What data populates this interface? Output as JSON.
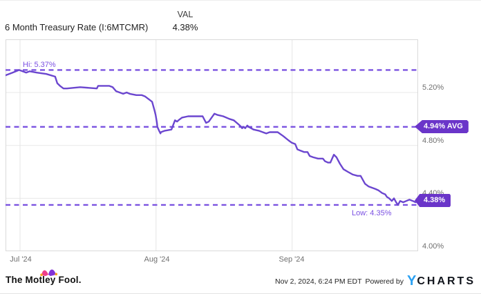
{
  "header": {
    "title": "6 Month Treasury Rate (I:6MTCMR)",
    "val_label": "VAL",
    "val_value": "4.38%"
  },
  "chart": {
    "hi_label": "Hi: 5.37%",
    "low_label": "Low: 4.35%",
    "avg_badge": "4.94% AVG",
    "last_badge": "4.38%",
    "y_tick_labels": [
      "5.20%",
      "4.80%",
      "4.40%",
      "4.00%"
    ],
    "x_tick_labels": [
      "Jul '24",
      "Aug '24",
      "Sep '24"
    ]
  },
  "colors": {
    "line": "#6b46cf",
    "dashed_lines": "#7a52e0",
    "badge": "#6a35c9",
    "axis_text": "#6f6f6f",
    "ycharts_blue": "#2aa0f2"
  },
  "chart_data": {
    "type": "line",
    "title": "6 Month Treasury Rate (I:6MTCMR)",
    "series_name": "6 Month Treasury Rate",
    "unit": "%",
    "stats": {
      "high": 5.37,
      "average": 4.94,
      "low": 4.35,
      "last": 4.38
    },
    "y_axis": {
      "ticks": [
        5.2,
        4.8,
        4.4,
        4.0
      ],
      "top_value": 5.6,
      "bottom_value": 4.0
    },
    "x_axis": {
      "months": [
        "Jul '24",
        "Aug '24",
        "Sep '24"
      ],
      "month_day_offsets": [
        3.3,
        34.3,
        65.3
      ],
      "days_total": 94
    },
    "legend": "none",
    "grid": true,
    "points": [
      [
        0,
        5.33
      ],
      [
        1.6,
        5.35
      ],
      [
        3.1,
        5.37
      ],
      [
        4.7,
        5.35
      ],
      [
        5.5,
        5.36
      ],
      [
        7.1,
        5.35
      ],
      [
        9.3,
        5.34
      ],
      [
        11.3,
        5.32
      ],
      [
        11.8,
        5.27
      ],
      [
        12.4,
        5.25
      ],
      [
        13.2,
        5.23
      ],
      [
        14,
        5.23
      ],
      [
        17,
        5.24
      ],
      [
        20.8,
        5.23
      ],
      [
        21.1,
        5.25
      ],
      [
        23.6,
        5.25
      ],
      [
        24.4,
        5.24
      ],
      [
        25.2,
        5.21
      ],
      [
        26,
        5.2
      ],
      [
        26.8,
        5.19
      ],
      [
        27.6,
        5.2
      ],
      [
        28.3,
        5.19
      ],
      [
        29.8,
        5.18
      ],
      [
        31,
        5.18
      ],
      [
        31.8,
        5.17
      ],
      [
        32.6,
        5.15
      ],
      [
        33.4,
        5.13
      ],
      [
        33.9,
        5.07
      ],
      [
        34.2,
        5.03
      ],
      [
        34.5,
        4.97
      ],
      [
        34.6,
        4.94
      ],
      [
        35,
        4.91
      ],
      [
        35.3,
        4.89
      ],
      [
        35.4,
        4.9
      ],
      [
        36.2,
        4.91
      ],
      [
        37.8,
        4.92
      ],
      [
        38.6,
        4.99
      ],
      [
        39.1,
        4.98
      ],
      [
        39.4,
        4.99
      ],
      [
        40.2,
        5.01
      ],
      [
        41.6,
        5.02
      ],
      [
        43.1,
        5.02
      ],
      [
        44.9,
        5.02
      ],
      [
        45.7,
        4.97
      ],
      [
        46.3,
        4.98
      ],
      [
        47.6,
        5.04
      ],
      [
        48.3,
        5.03
      ],
      [
        49.6,
        5.02
      ],
      [
        51,
        5.0
      ],
      [
        52,
        4.99
      ],
      [
        53.4,
        4.95
      ],
      [
        53.9,
        4.93
      ],
      [
        54.3,
        4.94
      ],
      [
        54.6,
        4.93
      ],
      [
        55.1,
        4.95
      ],
      [
        55.4,
        4.94
      ],
      [
        56.5,
        4.92
      ],
      [
        57.8,
        4.91
      ],
      [
        58.6,
        4.9
      ],
      [
        59.4,
        4.89
      ],
      [
        60.2,
        4.9
      ],
      [
        61.3,
        4.9
      ],
      [
        62,
        4.9
      ],
      [
        63.3,
        4.87
      ],
      [
        64.4,
        4.84
      ],
      [
        65.2,
        4.82
      ],
      [
        66,
        4.81
      ],
      [
        66.5,
        4.77
      ],
      [
        67.2,
        4.76
      ],
      [
        68,
        4.75
      ],
      [
        68.8,
        4.75
      ],
      [
        69.3,
        4.72
      ],
      [
        70.1,
        4.71
      ],
      [
        71.2,
        4.7
      ],
      [
        72.3,
        4.7
      ],
      [
        72.8,
        4.68
      ],
      [
        73.5,
        4.67
      ],
      [
        74,
        4.67
      ],
      [
        74.8,
        4.73
      ],
      [
        75.4,
        4.71
      ],
      [
        76.2,
        4.66
      ],
      [
        77,
        4.62
      ],
      [
        78,
        4.6
      ],
      [
        79.1,
        4.58
      ],
      [
        80.2,
        4.57
      ],
      [
        80.9,
        4.57
      ],
      [
        81.9,
        4.51
      ],
      [
        82.7,
        4.49
      ],
      [
        83.5,
        4.48
      ],
      [
        84.3,
        4.47
      ],
      [
        85,
        4.46
      ],
      [
        85.8,
        4.44
      ],
      [
        86.5,
        4.43
      ],
      [
        86.9,
        4.41
      ],
      [
        87.4,
        4.4
      ],
      [
        88,
        4.38
      ],
      [
        88.5,
        4.4
      ],
      [
        89,
        4.37
      ],
      [
        89.4,
        4.35
      ],
      [
        89.9,
        4.38
      ],
      [
        90.6,
        4.37
      ],
      [
        91.3,
        4.38
      ],
      [
        92,
        4.39
      ],
      [
        92.8,
        4.38
      ],
      [
        93.4,
        4.37
      ],
      [
        94,
        4.38
      ]
    ]
  },
  "footer": {
    "brand": "The Motley Fool.",
    "timestamp": "Nov 2, 2024, 6:24 PM EDT",
    "powered_by": "Powered by",
    "logo_y": "Y",
    "logo_rest": "CHARTS"
  }
}
